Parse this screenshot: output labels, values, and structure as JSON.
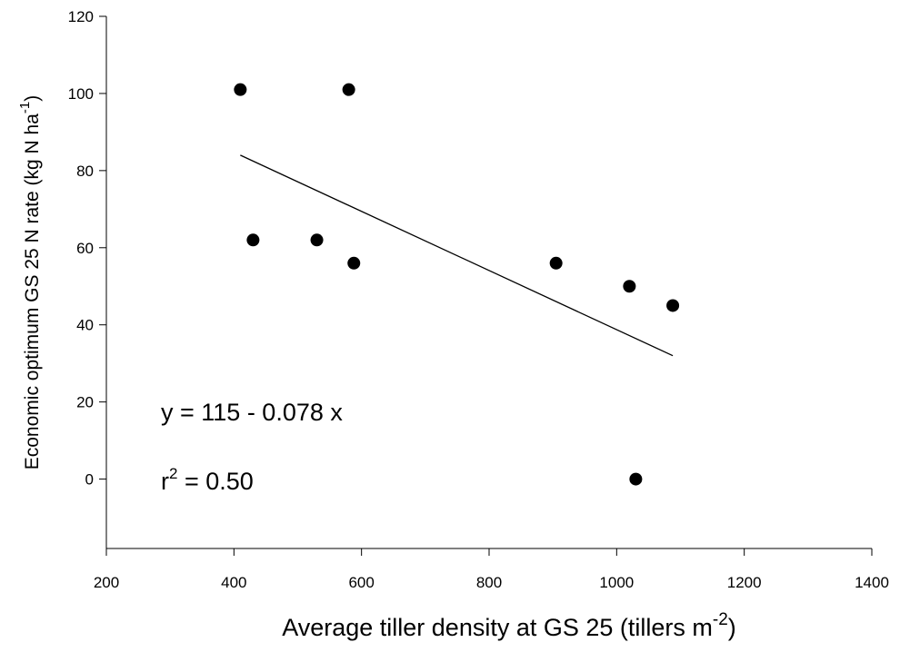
{
  "chart_data": {
    "type": "scatter",
    "x": [
      410,
      430,
      530,
      580,
      588,
      905,
      1020,
      1088,
      1030
    ],
    "values": [
      101,
      62,
      62,
      101,
      56,
      56,
      50,
      45,
      0
    ],
    "color": "#000000",
    "fit_line": {
      "x": [
        410,
        1088
      ],
      "values": [
        84,
        32
      ]
    },
    "xlim": [
      200,
      1400
    ],
    "xticks": [
      200,
      400,
      600,
      800,
      1000,
      1200,
      1400
    ],
    "ylim": [
      -18,
      120
    ],
    "yticks": [
      0,
      20,
      40,
      60,
      80,
      100,
      120
    ],
    "x_label": [
      "Average tiller density at GS 25 (tillers m",
      "-2",
      ")"
    ],
    "y_label": [
      "Economic optimum GS 25 N rate (kg N ha",
      "-1",
      ")"
    ],
    "annotations": [
      [
        "y = 115 - 0.078 x"
      ],
      [
        "r",
        "2",
        " = 0.50"
      ]
    ]
  }
}
